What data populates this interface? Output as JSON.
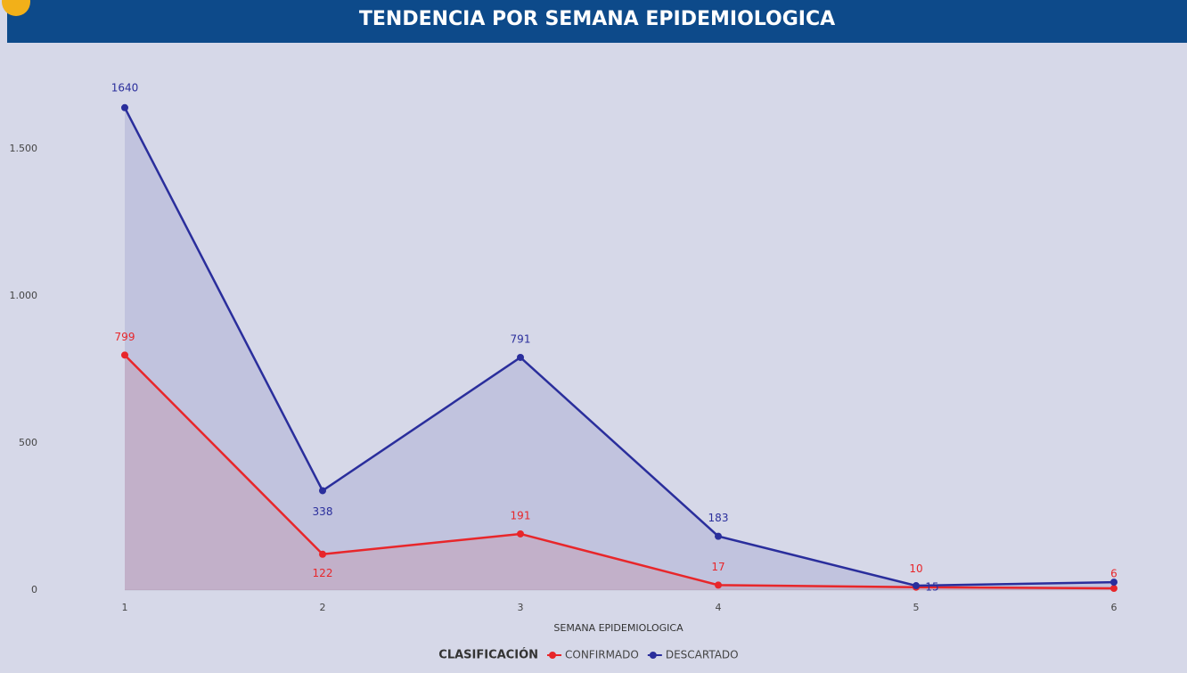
{
  "chart_data": {
    "type": "line",
    "title": "TENDENCIA POR SEMANA EPIDEMIOLOGICA",
    "x": [
      1,
      2,
      3,
      4,
      5,
      6
    ],
    "xlim": [
      1,
      6
    ],
    "xticks": [
      1,
      2,
      3,
      4,
      5,
      6
    ],
    "ylim": [
      0,
      1700
    ],
    "yticks": [
      0,
      500,
      {
        "value": 1000,
        "label": "1.000"
      },
      {
        "value": 1500,
        "label": "1.500"
      }
    ],
    "x_label": "SEMANA EPIDEMIOLOGICA",
    "legend_title": "CLASIFICACIÓN",
    "area": true,
    "series": [
      {
        "name": "CONFIRMADO",
        "color": "#e8262a",
        "values": [
          799,
          122,
          191,
          17,
          10,
          6
        ]
      },
      {
        "name": "DESCARTADO",
        "color": "#2a2e9c",
        "values": [
          1640,
          338,
          791,
          183,
          15,
          27
        ],
        "value_labels": [
          "1640",
          "338",
          "791",
          "183",
          "15",
          null
        ]
      }
    ]
  }
}
